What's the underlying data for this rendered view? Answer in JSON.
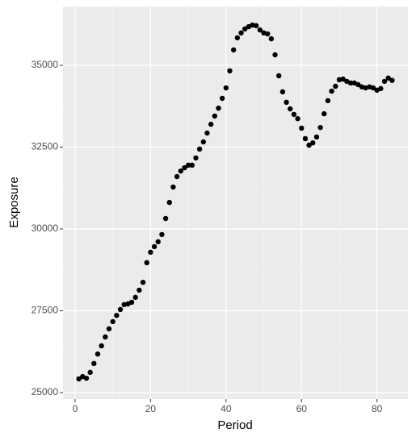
{
  "chart_data": {
    "type": "scatter",
    "x_label": "Period",
    "y_label": "Exposure",
    "x": [
      1,
      2,
      3,
      4,
      5,
      6,
      7,
      8,
      9,
      10,
      11,
      12,
      13,
      14,
      15,
      16,
      17,
      18,
      19,
      20,
      21,
      22,
      23,
      24,
      25,
      26,
      27,
      28,
      29,
      30,
      31,
      32,
      33,
      34,
      35,
      36,
      37,
      38,
      39,
      40,
      41,
      42,
      43,
      44,
      45,
      46,
      47,
      48,
      49,
      50,
      51,
      52,
      53,
      54,
      55,
      56,
      57,
      58,
      59,
      60,
      61,
      62,
      63,
      64,
      65,
      66,
      67,
      68,
      69,
      70,
      71,
      72,
      73,
      74,
      75,
      76,
      77,
      78,
      79,
      80,
      81,
      82,
      83,
      84
    ],
    "values": [
      25420,
      25490,
      25440,
      25620,
      25890,
      26180,
      26430,
      26700,
      26950,
      27170,
      27360,
      27540,
      27690,
      27710,
      27760,
      27910,
      28130,
      28370,
      28970,
      29290,
      29460,
      29610,
      29830,
      30320,
      30810,
      31280,
      31600,
      31770,
      31870,
      31950,
      31950,
      32170,
      32440,
      32660,
      32930,
      33200,
      33450,
      33690,
      33990,
      34310,
      34830,
      35470,
      35840,
      35990,
      36110,
      36180,
      36230,
      36210,
      36080,
      35990,
      35960,
      35810,
      35320,
      34680,
      34190,
      33870,
      33670,
      33500,
      33370,
      33080,
      32760,
      32560,
      32630,
      32810,
      33100,
      33520,
      33920,
      34210,
      34360,
      34560,
      34580,
      34510,
      34460,
      34460,
      34410,
      34340,
      34310,
      34340,
      34310,
      34240,
      34290,
      34510,
      34610,
      34540
    ],
    "color": "#000000",
    "xlim": [
      -3.2,
      88.2
    ],
    "ylim": [
      24803,
      36798
    ],
    "xticks": [
      0,
      20,
      40,
      60,
      80
    ],
    "yticks": [
      25000,
      27500,
      30000,
      32500,
      35000
    ],
    "grid": true
  }
}
